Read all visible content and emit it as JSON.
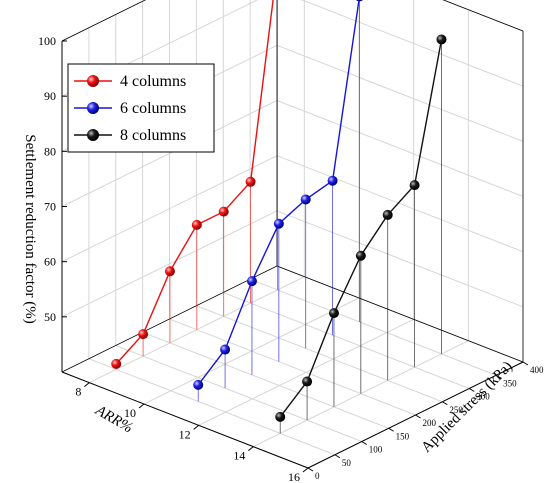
{
  "chart_data": {
    "type": "line",
    "subtype": "3d-line-with-droplines",
    "title": "",
    "zlabel": "Settlement reduction factor (%)",
    "xlabel": "ARR%",
    "ylabel": "Applied stress (kPa)",
    "z_ticks": [
      "50",
      "60",
      "70",
      "80",
      "90",
      "100"
    ],
    "x_ticks": [
      "8",
      "10",
      "12",
      "14",
      "16"
    ],
    "y_ticks": [
      "0",
      "50",
      "100",
      "150",
      "200",
      "250",
      "300",
      "350",
      "400"
    ],
    "z_range": [
      40,
      100
    ],
    "grid": true,
    "legend_position": "top-left",
    "series": [
      {
        "name": "4 columns",
        "color": "#e8110f",
        "x": 8,
        "stress": [
          50,
          100,
          150,
          200,
          250,
          300,
          350
        ],
        "values": [
          41,
          44,
          53,
          59,
          59,
          62,
          99
        ]
      },
      {
        "name": "6 columns",
        "color": "#1515d8",
        "x": 11,
        "stress": [
          50,
          100,
          150,
          200,
          250,
          300,
          350
        ],
        "values": [
          43,
          47,
          57,
          65,
          67,
          68,
          99
        ]
      },
      {
        "name": "8 columns",
        "color": "#111111",
        "x": 14,
        "stress": [
          50,
          100,
          150,
          200,
          250,
          300,
          350
        ],
        "values": [
          43,
          47,
          57,
          65,
          70,
          73,
          97
        ]
      }
    ]
  }
}
